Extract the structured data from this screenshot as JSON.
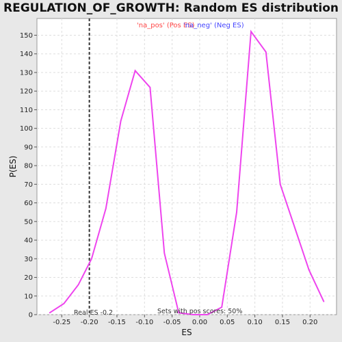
{
  "chart_data": {
    "type": "line",
    "title": "REGULATION_OF_GROWTH: Random ES distribution",
    "xlabel": "ES",
    "ylabel": "P(ES)",
    "xlim": [
      -0.295,
      0.248
    ],
    "ylim": [
      0,
      159
    ],
    "x_ticks": [
      -0.25,
      -0.2,
      -0.15,
      -0.1,
      -0.05,
      0.0,
      0.05,
      0.1,
      0.15,
      0.2
    ],
    "x_tick_labels": [
      "-0.25",
      "-0.20",
      "-0.15",
      "-0.10",
      "-0.05",
      "0.00",
      "0.05",
      "0.10",
      "0.15",
      "0.20"
    ],
    "y_ticks": [
      0,
      10,
      20,
      30,
      40,
      50,
      60,
      70,
      80,
      90,
      100,
      110,
      120,
      130,
      140,
      150
    ],
    "y_tick_labels": [
      "0",
      "10",
      "20",
      "30",
      "40",
      "50",
      "60",
      "70",
      "80",
      "90",
      "100",
      "110",
      "120",
      "130",
      "140",
      "150"
    ],
    "grid": true,
    "series": [
      {
        "name": "",
        "color": "#ee44ee",
        "x": [
          -0.272,
          -0.246,
          -0.22,
          -0.196,
          -0.17,
          -0.143,
          -0.117,
          -0.09,
          -0.064,
          -0.038,
          -0.012,
          0.014,
          0.04,
          0.067,
          0.093,
          0.12,
          0.146,
          0.172,
          0.198,
          0.225
        ],
        "y": [
          1,
          6,
          16,
          30,
          57,
          104,
          131,
          122,
          33,
          1,
          0,
          0,
          4,
          55,
          152,
          141,
          70,
          47,
          24,
          7
        ]
      }
    ],
    "real_es": {
      "x": -0.2,
      "label": "Real ES -0.2",
      "color": "#333333"
    },
    "legend": [
      {
        "text": "'na_pos' (Pos ES)",
        "color": "#ff4444"
      },
      {
        "text": "'na_neg' (Neg ES)",
        "color": "#4444ff"
      }
    ],
    "footnote": "Sets with pos scores: 50%"
  }
}
